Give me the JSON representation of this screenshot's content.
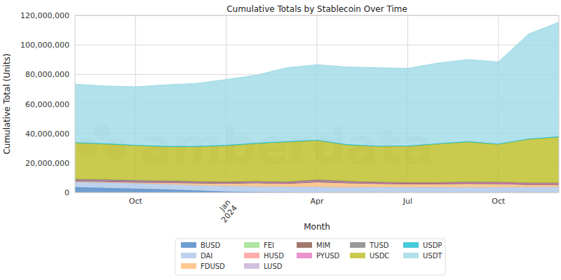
{
  "chart_data": {
    "type": "area",
    "stacked": true,
    "title": "Cumulative Totals by Stablecoin Over Time",
    "x_label": "Month",
    "y_label": "Cumulative Total (Units)",
    "annotations": [
      "amberdata"
    ],
    "categories": [
      null,
      null,
      "Oct",
      null,
      null,
      "Jan\n2024",
      null,
      null,
      "Apr",
      null,
      null,
      "Jul",
      null,
      null,
      "Oct",
      null,
      null
    ],
    "ylim": [
      0,
      120000000
    ],
    "yticks": [
      0,
      {
        "value": 20000000,
        "label": "20,000,000"
      },
      {
        "value": 40000000,
        "label": "40,000,000"
      },
      {
        "value": 60000000,
        "label": "60,000,000"
      },
      {
        "value": 80000000,
        "label": "80,000,000"
      },
      {
        "value": 100000000,
        "label": "100,000,000"
      },
      {
        "value": 120000000,
        "label": "120,000,000"
      }
    ],
    "grid": true,
    "legend": "bottom",
    "series": [
      {
        "name": "BUSD",
        "color": "#4a86c5",
        "values": [
          3500000,
          3000000,
          2500000,
          2000000,
          1300000,
          600000,
          200000,
          100000,
          50000,
          0,
          0,
          0,
          0,
          0,
          0,
          0,
          0
        ]
      },
      {
        "name": "DAI",
        "color": "#aec7e8",
        "values": [
          3800000,
          3800000,
          3700000,
          3600000,
          3600000,
          3800000,
          3800000,
          3700000,
          3800000,
          3600000,
          3700000,
          3600000,
          3500000,
          3600000,
          3600000,
          3700000,
          3800000
        ]
      },
      {
        "name": "FDUSD",
        "color": "#ffbb78",
        "values": [
          0,
          200000,
          400000,
          800000,
          1200000,
          1500000,
          2200000,
          2000000,
          3000000,
          2600000,
          2100000,
          1900000,
          2000000,
          2200000,
          2000000,
          1400000,
          1300000
        ]
      },
      {
        "name": "FEI",
        "color": "#98df8a",
        "values": [
          50000,
          50000,
          50000,
          50000,
          50000,
          50000,
          50000,
          50000,
          50000,
          50000,
          50000,
          50000,
          50000,
          50000,
          50000,
          50000,
          50000
        ]
      },
      {
        "name": "HUSD",
        "color": "#ff9896",
        "values": [
          100000,
          100000,
          100000,
          100000,
          100000,
          100000,
          100000,
          100000,
          100000,
          100000,
          100000,
          100000,
          100000,
          100000,
          100000,
          100000,
          100000
        ]
      },
      {
        "name": "LUSD",
        "color": "#c5b0d5",
        "values": [
          150000,
          150000,
          150000,
          150000,
          150000,
          150000,
          150000,
          150000,
          150000,
          150000,
          150000,
          150000,
          150000,
          150000,
          150000,
          150000,
          150000
        ]
      },
      {
        "name": "MIM",
        "color": "#8c564b",
        "values": [
          500000,
          450000,
          400000,
          400000,
          350000,
          300000,
          300000,
          300000,
          300000,
          250000,
          250000,
          200000,
          200000,
          200000,
          200000,
          200000,
          200000
        ]
      },
      {
        "name": "PYUSD",
        "color": "#e377c2",
        "values": [
          50000,
          100000,
          150000,
          200000,
          250000,
          300000,
          300000,
          300000,
          350000,
          400000,
          400000,
          400000,
          500000,
          500000,
          600000,
          500000,
          500000
        ]
      },
      {
        "name": "TUSD",
        "color": "#7f7f7f",
        "values": [
          900000,
          900000,
          800000,
          700000,
          500000,
          400000,
          500000,
          500000,
          900000,
          500000,
          400000,
          350000,
          300000,
          400000,
          400000,
          400000,
          400000
        ]
      },
      {
        "name": "USDC",
        "color": "#bcbd22",
        "values": [
          24500000,
          24000000,
          23500000,
          23000000,
          23500000,
          24500000,
          25500000,
          27000000,
          26500000,
          24500000,
          24000000,
          24500000,
          26000000,
          27000000,
          25500000,
          29500000,
          31000000
        ]
      },
      {
        "name": "USDP",
        "color": "#17becf",
        "values": [
          400000,
          400000,
          400000,
          400000,
          400000,
          400000,
          400000,
          400000,
          400000,
          400000,
          400000,
          400000,
          400000,
          400000,
          400000,
          400000,
          400000
        ]
      },
      {
        "name": "USDT",
        "color": "#9edae5",
        "values": [
          39500000,
          39000000,
          39500000,
          41500000,
          42500000,
          44500000,
          46000000,
          50000000,
          51000000,
          52500000,
          53000000,
          52500000,
          54500000,
          55500000,
          55500000,
          71000000,
          77500000
        ]
      }
    ]
  }
}
